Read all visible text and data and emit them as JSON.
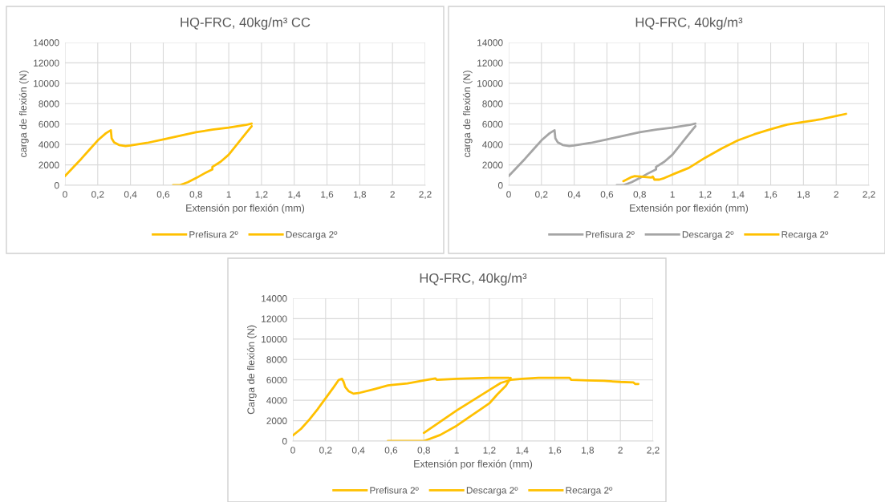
{
  "chart_data": [
    {
      "type": "line",
      "title": "HQ-FRC, 40kg/m³ CC",
      "xlabel": "Extensión por flexión (mm)",
      "ylabel": "carga de flexión (N)",
      "xlim": [
        0,
        2.2
      ],
      "xticks": [
        0,
        {
          "value": 0.2,
          "label": "0,2"
        },
        {
          "value": 0.4,
          "label": "0,4"
        },
        {
          "value": 0.6,
          "label": "0,6"
        },
        {
          "value": 0.8,
          "label": "0,8"
        },
        1,
        {
          "value": 1.2,
          "label": "1,2"
        },
        {
          "value": 1.4,
          "label": "1,4"
        },
        {
          "value": 1.6,
          "label": "1,6"
        },
        {
          "value": 1.8,
          "label": "1,8"
        },
        2,
        {
          "value": 2.2,
          "label": "2,2"
        }
      ],
      "ylim": [
        0,
        14000
      ],
      "yticks": [
        0,
        2000,
        4000,
        6000,
        8000,
        10000,
        12000,
        14000
      ],
      "grid": true,
      "legend": "bottom",
      "line_style": "solid",
      "marker": "none",
      "series": [
        {
          "name": "Prefisura 2º",
          "color": "#ffc000",
          "x": [
            0,
            0.05,
            0.1,
            0.15,
            0.2,
            0.25,
            0.28,
            0.285,
            0.3,
            0.33,
            0.37,
            0.4,
            0.5,
            0.6,
            0.7,
            0.8,
            0.9,
            1.0,
            1.1,
            1.14
          ],
          "values": [
            900,
            1750,
            2600,
            3500,
            4400,
            5100,
            5400,
            4600,
            4200,
            3950,
            3850,
            3900,
            4150,
            4500,
            4850,
            5200,
            5450,
            5650,
            5900,
            6050
          ]
        },
        {
          "name": "Descarga 2º",
          "color": "#ffc000",
          "x": [
            1.14,
            1.1,
            1.05,
            1.0,
            0.95,
            0.9,
            0.9,
            0.85,
            0.8,
            0.75,
            0.7,
            0.66
          ],
          "values": [
            5800,
            5000,
            4000,
            3000,
            2300,
            1800,
            1550,
            1150,
            700,
            300,
            0,
            0
          ]
        }
      ]
    },
    {
      "type": "line",
      "title": "HQ-FRC, 40kg/m³",
      "xlabel": "Extensión por flexión (mm)",
      "ylabel": "carga de flexión (N)",
      "xlim": [
        0,
        2.2
      ],
      "xticks": [
        0,
        {
          "value": 0.2,
          "label": "0,2"
        },
        {
          "value": 0.4,
          "label": "0,4"
        },
        {
          "value": 0.6,
          "label": "0,6"
        },
        {
          "value": 0.8,
          "label": "0,8"
        },
        1,
        {
          "value": 1.2,
          "label": "1,2"
        },
        {
          "value": 1.4,
          "label": "1,4"
        },
        {
          "value": 1.6,
          "label": "1,6"
        },
        {
          "value": 1.8,
          "label": "1,8"
        },
        2,
        {
          "value": 2.2,
          "label": "2,2"
        }
      ],
      "ylim": [
        0,
        14000
      ],
      "yticks": [
        0,
        2000,
        4000,
        6000,
        8000,
        10000,
        12000,
        14000
      ],
      "grid": true,
      "legend": "bottom",
      "line_style": "solid",
      "marker": "none",
      "series": [
        {
          "name": "Prefisura 2º",
          "color": "#a5a5a5",
          "x": [
            0,
            0.05,
            0.1,
            0.15,
            0.2,
            0.25,
            0.28,
            0.285,
            0.3,
            0.33,
            0.37,
            0.4,
            0.5,
            0.6,
            0.7,
            0.8,
            0.9,
            1.0,
            1.1,
            1.14
          ],
          "values": [
            900,
            1750,
            2600,
            3500,
            4400,
            5100,
            5400,
            4600,
            4200,
            3950,
            3850,
            3900,
            4150,
            4500,
            4850,
            5200,
            5450,
            5650,
            5900,
            6050
          ]
        },
        {
          "name": "Descarga 2º",
          "color": "#a5a5a5",
          "x": [
            1.14,
            1.1,
            1.05,
            1.0,
            0.95,
            0.9,
            0.9,
            0.85,
            0.8,
            0.75,
            0.7,
            0.66
          ],
          "values": [
            5800,
            5000,
            4000,
            3000,
            2300,
            1800,
            1550,
            1150,
            700,
            300,
            0,
            0
          ]
        },
        {
          "name": "Recarga 2º",
          "color": "#ffc000",
          "x": [
            0.7,
            0.75,
            0.77,
            0.8,
            0.87,
            0.88,
            0.89,
            0.92,
            0.95,
            1.0,
            1.1,
            1.2,
            1.3,
            1.4,
            1.5,
            1.6,
            1.7,
            1.8,
            1.9,
            2.0,
            2.06
          ],
          "values": [
            400,
            800,
            900,
            850,
            750,
            850,
            550,
            550,
            700,
            1050,
            1700,
            2700,
            3600,
            4400,
            5000,
            5500,
            5950,
            6200,
            6450,
            6800,
            7000
          ]
        }
      ]
    },
    {
      "type": "line",
      "title": "HQ-FRC, 40kg/m³",
      "xlabel": "Extensión por flexión (mm)",
      "ylabel": "Carga de flexión (N)",
      "xlim": [
        0,
        2.2
      ],
      "xticks": [
        0,
        {
          "value": 0.2,
          "label": "0,2"
        },
        {
          "value": 0.4,
          "label": "0,4"
        },
        {
          "value": 0.6,
          "label": "0,6"
        },
        {
          "value": 0.8,
          "label": "0,8"
        },
        1,
        {
          "value": 1.2,
          "label": "1,2"
        },
        {
          "value": 1.4,
          "label": "1,4"
        },
        {
          "value": 1.6,
          "label": "1,6"
        },
        {
          "value": 1.8,
          "label": "1,8"
        },
        2,
        {
          "value": 2.2,
          "label": "2,2"
        }
      ],
      "ylim": [
        0,
        14000
      ],
      "yticks": [
        0,
        2000,
        4000,
        6000,
        8000,
        10000,
        12000,
        14000
      ],
      "grid": true,
      "legend": "bottom",
      "line_style": "solid",
      "marker": "none",
      "series": [
        {
          "name": "Prefisura 2º",
          "color": "#ffc000",
          "x": [
            0,
            0.05,
            0.1,
            0.15,
            0.2,
            0.25,
            0.28,
            0.3,
            0.31,
            0.32,
            0.34,
            0.37,
            0.4,
            0.5,
            0.58,
            0.6,
            0.7,
            0.8,
            0.87,
            0.88,
            1.0,
            1.2,
            1.32
          ],
          "values": [
            550,
            1200,
            2100,
            3100,
            4200,
            5300,
            6000,
            6100,
            5800,
            5300,
            4900,
            4650,
            4700,
            5100,
            5450,
            5500,
            5650,
            5950,
            6150,
            6000,
            6100,
            6200,
            6200
          ]
        },
        {
          "name": "Descarga 2º",
          "color": "#ffc000",
          "x": [
            1.33,
            1.3,
            1.25,
            1.2,
            1.1,
            1.0,
            0.9,
            0.8,
            0.58
          ],
          "values": [
            6200,
            5400,
            4600,
            3700,
            2600,
            1500,
            600,
            0,
            0
          ]
        },
        {
          "name": "Recarga 2º",
          "color": "#ffc000",
          "x": [
            0.8,
            0.9,
            1.0,
            1.1,
            1.2,
            1.27,
            1.33,
            1.4,
            1.5,
            1.6,
            1.69,
            1.7,
            1.8,
            1.9,
            2.0,
            2.08,
            2.09,
            2.11
          ],
          "values": [
            800,
            1900,
            3000,
            4000,
            5000,
            5700,
            6000,
            6100,
            6200,
            6200,
            6200,
            6000,
            5950,
            5900,
            5800,
            5750,
            5600,
            5600
          ]
        }
      ]
    }
  ]
}
